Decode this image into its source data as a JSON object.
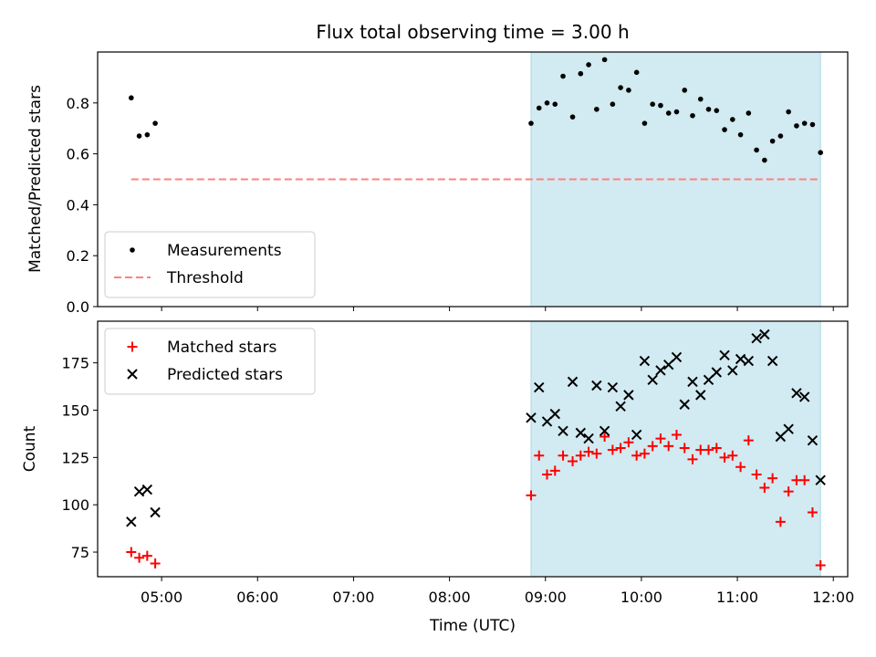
{
  "title": "Flux total observing time = 3.00 h",
  "xlabel": "Time (UTC)",
  "colors": {
    "shade": "#add8e6",
    "matched": "#ff0000",
    "predicted": "#000000",
    "threshold": "#ff8080",
    "measurement": "#000000"
  },
  "chart_data": [
    {
      "type": "scatter",
      "ylabel": "Matched/Predicted stars",
      "ylim": [
        0,
        1.0
      ],
      "yticks": [
        "0.0",
        "0.2",
        "0.4",
        "0.6",
        "0.8"
      ],
      "xlim": [
        "04:20",
        "12:09"
      ],
      "xticks": [
        "05:00",
        "06:00",
        "07:00",
        "08:00",
        "09:00",
        "10:00",
        "11:00",
        "12:00"
      ],
      "shaded_interval": [
        "08:51",
        "11:52"
      ],
      "legend": {
        "position": "lower-left",
        "entries": [
          "Measurements",
          "Threshold"
        ]
      },
      "threshold": {
        "name": "Threshold",
        "value": 0.5,
        "x_range": [
          "04:41",
          "11:52"
        ]
      },
      "series": [
        {
          "name": "Measurements",
          "marker": "dot",
          "points": [
            [
              "04:41",
              0.82
            ],
            [
              "04:46",
              0.67
            ],
            [
              "04:51",
              0.675
            ],
            [
              "04:56",
              0.72
            ],
            [
              "08:51",
              0.72
            ],
            [
              "08:56",
              0.78
            ],
            [
              "09:01",
              0.8
            ],
            [
              "09:06",
              0.795
            ],
            [
              "09:11",
              0.905
            ],
            [
              "09:17",
              0.745
            ],
            [
              "09:22",
              0.915
            ],
            [
              "09:27",
              0.95
            ],
            [
              "09:32",
              0.775
            ],
            [
              "09:37",
              0.97
            ],
            [
              "09:42",
              0.795
            ],
            [
              "09:47",
              0.86
            ],
            [
              "09:52",
              0.85
            ],
            [
              "09:57",
              0.92
            ],
            [
              "10:02",
              0.72
            ],
            [
              "10:07",
              0.795
            ],
            [
              "10:12",
              0.79
            ],
            [
              "10:17",
              0.76
            ],
            [
              "10:22",
              0.765
            ],
            [
              "10:27",
              0.85
            ],
            [
              "10:32",
              0.75
            ],
            [
              "10:37",
              0.815
            ],
            [
              "10:42",
              0.775
            ],
            [
              "10:47",
              0.77
            ],
            [
              "10:52",
              0.695
            ],
            [
              "10:57",
              0.735
            ],
            [
              "11:02",
              0.675
            ],
            [
              "11:07",
              0.76
            ],
            [
              "11:12",
              0.615
            ],
            [
              "11:17",
              0.575
            ],
            [
              "11:22",
              0.65
            ],
            [
              "11:27",
              0.67
            ],
            [
              "11:32",
              0.765
            ],
            [
              "11:37",
              0.71
            ],
            [
              "11:42",
              0.72
            ],
            [
              "11:47",
              0.715
            ],
            [
              "11:52",
              0.605
            ]
          ]
        }
      ]
    },
    {
      "type": "scatter",
      "ylabel": "Count",
      "ylim": [
        62,
        197
      ],
      "yticks": [
        "75",
        "100",
        "125",
        "150",
        "175"
      ],
      "xlim": [
        "04:20",
        "12:09"
      ],
      "xticks": [
        "05:00",
        "06:00",
        "07:00",
        "08:00",
        "09:00",
        "10:00",
        "11:00",
        "12:00"
      ],
      "shaded_interval": [
        "08:51",
        "11:52"
      ],
      "legend": {
        "position": "top-left",
        "entries": [
          "Matched stars",
          "Predicted stars"
        ]
      },
      "series": [
        {
          "name": "Matched stars",
          "marker": "plus",
          "points": [
            [
              "04:41",
              75
            ],
            [
              "04:46",
              72
            ],
            [
              "04:51",
              73
            ],
            [
              "04:56",
              69
            ],
            [
              "08:51",
              105
            ],
            [
              "08:56",
              126
            ],
            [
              "09:01",
              116
            ],
            [
              "09:06",
              118
            ],
            [
              "09:11",
              126
            ],
            [
              "09:17",
              123
            ],
            [
              "09:22",
              126
            ],
            [
              "09:27",
              128
            ],
            [
              "09:32",
              127
            ],
            [
              "09:37",
              136
            ],
            [
              "09:42",
              129
            ],
            [
              "09:47",
              130
            ],
            [
              "09:52",
              133
            ],
            [
              "09:57",
              126
            ],
            [
              "10:02",
              127
            ],
            [
              "10:07",
              131
            ],
            [
              "10:12",
              135
            ],
            [
              "10:17",
              131
            ],
            [
              "10:22",
              137
            ],
            [
              "10:27",
              130
            ],
            [
              "10:32",
              124
            ],
            [
              "10:37",
              129
            ],
            [
              "10:42",
              129
            ],
            [
              "10:47",
              130
            ],
            [
              "10:52",
              125
            ],
            [
              "10:57",
              126
            ],
            [
              "11:02",
              120
            ],
            [
              "11:07",
              134
            ],
            [
              "11:12",
              116
            ],
            [
              "11:17",
              109
            ],
            [
              "11:22",
              114
            ],
            [
              "11:27",
              91
            ],
            [
              "11:32",
              107
            ],
            [
              "11:37",
              113
            ],
            [
              "11:42",
              113
            ],
            [
              "11:47",
              96
            ],
            [
              "11:52",
              68
            ]
          ]
        },
        {
          "name": "Predicted stars",
          "marker": "x",
          "points": [
            [
              "04:41",
              91
            ],
            [
              "04:46",
              107
            ],
            [
              "04:51",
              108
            ],
            [
              "04:56",
              96
            ],
            [
              "08:51",
              146
            ],
            [
              "08:56",
              162
            ],
            [
              "09:01",
              144
            ],
            [
              "09:06",
              148
            ],
            [
              "09:11",
              139
            ],
            [
              "09:17",
              165
            ],
            [
              "09:22",
              138
            ],
            [
              "09:27",
              135
            ],
            [
              "09:32",
              163
            ],
            [
              "09:37",
              139
            ],
            [
              "09:42",
              162
            ],
            [
              "09:47",
              152
            ],
            [
              "09:52",
              158
            ],
            [
              "09:57",
              137
            ],
            [
              "10:02",
              176
            ],
            [
              "10:07",
              166
            ],
            [
              "10:12",
              171
            ],
            [
              "10:17",
              174
            ],
            [
              "10:22",
              178
            ],
            [
              "10:27",
              153
            ],
            [
              "10:32",
              165
            ],
            [
              "10:37",
              158
            ],
            [
              "10:42",
              166
            ],
            [
              "10:47",
              170
            ],
            [
              "10:52",
              179
            ],
            [
              "10:57",
              171
            ],
            [
              "11:02",
              177
            ],
            [
              "11:07",
              176
            ],
            [
              "11:12",
              188
            ],
            [
              "11:17",
              190
            ],
            [
              "11:22",
              176
            ],
            [
              "11:27",
              136
            ],
            [
              "11:32",
              140
            ],
            [
              "11:37",
              159
            ],
            [
              "11:42",
              157
            ],
            [
              "11:47",
              134
            ],
            [
              "11:52",
              113
            ]
          ]
        }
      ]
    }
  ]
}
